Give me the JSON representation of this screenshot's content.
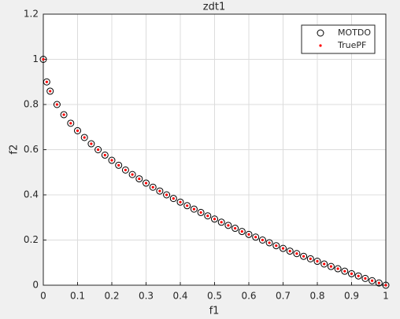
{
  "chart_data": {
    "type": "scatter",
    "title": "zdt1",
    "xlabel": "f1",
    "ylabel": "f2",
    "xlim": [
      0,
      1
    ],
    "ylim": [
      0,
      1.2
    ],
    "xticks": [
      0,
      0.1,
      0.2,
      0.3,
      0.4,
      0.5,
      0.6,
      0.7,
      0.8,
      0.9,
      1
    ],
    "yticks": [
      0,
      0.2,
      0.4,
      0.6,
      0.8,
      1,
      1.2
    ],
    "grid": true,
    "legend": "top-right",
    "series": [
      {
        "name": "MOTDO",
        "color": "#000000",
        "marker": "circle",
        "x": [
          0,
          0.01,
          0.02,
          0.04,
          0.06,
          0.08,
          0.1,
          0.12,
          0.14,
          0.16,
          0.18,
          0.2,
          0.22,
          0.24,
          0.26,
          0.28,
          0.3,
          0.32,
          0.34,
          0.36,
          0.38,
          0.4,
          0.42,
          0.44,
          0.46,
          0.48,
          0.5,
          0.52,
          0.54,
          0.56,
          0.58,
          0.6,
          0.62,
          0.64,
          0.66,
          0.68,
          0.7,
          0.72,
          0.74,
          0.76,
          0.78,
          0.8,
          0.82,
          0.84,
          0.86,
          0.88,
          0.9,
          0.92,
          0.94,
          0.96,
          0.98,
          1
        ],
        "values": [
          1,
          0.9,
          0.859,
          0.8,
          0.755,
          0.717,
          0.684,
          0.654,
          0.626,
          0.6,
          0.576,
          0.553,
          0.531,
          0.51,
          0.49,
          0.471,
          0.452,
          0.434,
          0.417,
          0.4,
          0.384,
          0.368,
          0.352,
          0.337,
          0.322,
          0.307,
          0.293,
          0.279,
          0.265,
          0.252,
          0.238,
          0.225,
          0.213,
          0.2,
          0.188,
          0.175,
          0.163,
          0.151,
          0.14,
          0.128,
          0.117,
          0.106,
          0.094,
          0.083,
          0.073,
          0.062,
          0.051,
          0.041,
          0.03,
          0.02,
          0.01,
          0
        ]
      },
      {
        "name": "TruePF",
        "color": "#ff0000",
        "marker": "dot",
        "x": [
          0,
          0.01,
          0.02,
          0.04,
          0.06,
          0.08,
          0.1,
          0.12,
          0.14,
          0.16,
          0.18,
          0.2,
          0.22,
          0.24,
          0.26,
          0.28,
          0.3,
          0.32,
          0.34,
          0.36,
          0.38,
          0.4,
          0.42,
          0.44,
          0.46,
          0.48,
          0.5,
          0.52,
          0.54,
          0.56,
          0.58,
          0.6,
          0.62,
          0.64,
          0.66,
          0.68,
          0.7,
          0.72,
          0.74,
          0.76,
          0.78,
          0.8,
          0.82,
          0.84,
          0.86,
          0.88,
          0.9,
          0.92,
          0.94,
          0.96,
          0.98,
          1
        ],
        "values": [
          1,
          0.9,
          0.859,
          0.8,
          0.755,
          0.717,
          0.684,
          0.654,
          0.626,
          0.6,
          0.576,
          0.553,
          0.531,
          0.51,
          0.49,
          0.471,
          0.452,
          0.434,
          0.417,
          0.4,
          0.384,
          0.368,
          0.352,
          0.337,
          0.322,
          0.307,
          0.293,
          0.279,
          0.265,
          0.252,
          0.238,
          0.225,
          0.213,
          0.2,
          0.188,
          0.175,
          0.163,
          0.151,
          0.14,
          0.128,
          0.117,
          0.106,
          0.094,
          0.083,
          0.073,
          0.062,
          0.051,
          0.041,
          0.03,
          0.02,
          0.01,
          0
        ]
      }
    ]
  }
}
